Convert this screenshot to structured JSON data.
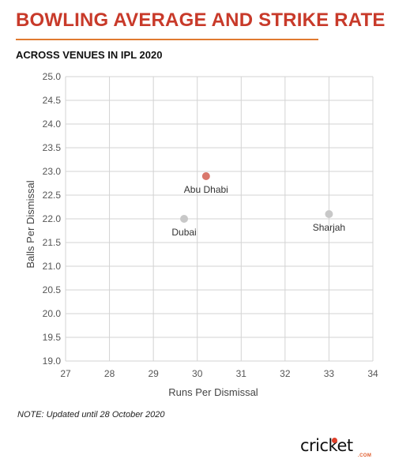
{
  "header": {
    "title": "BOWLING AVERAGE AND STRIKE RATE",
    "subtitle": "ACROSS VENUES IN IPL 2020"
  },
  "note": "NOTE: Updated until 28 October 2020",
  "logo": {
    "text": "cricket",
    "sub": ".COM"
  },
  "colors": {
    "title": "#c83a2a",
    "rule": "#e07a30",
    "highlight_point": "#d9776b",
    "point": "#c8c8c8",
    "grid": "#d3d3d3"
  },
  "chart_data": {
    "type": "scatter",
    "xlabel": "Runs Per Dismissal",
    "ylabel": "Balls Per Dismissal",
    "xlim": [
      27,
      34
    ],
    "ylim": [
      19.0,
      25.0
    ],
    "xticks": [
      "27",
      "28",
      "29",
      "30",
      "31",
      "32",
      "33",
      "34"
    ],
    "yticks": [
      "19.0",
      "19.5",
      "20.0",
      "20.5",
      "21.0",
      "21.5",
      "22.0",
      "22.5",
      "23.0",
      "23.5",
      "24.0",
      "24.5",
      "25.0"
    ],
    "grid": true,
    "points": [
      {
        "label": "Abu Dhabi",
        "x": 30.2,
        "y": 22.9,
        "highlight": true
      },
      {
        "label": "Dubai",
        "x": 29.7,
        "y": 22.0,
        "highlight": false
      },
      {
        "label": "Sharjah",
        "x": 33.0,
        "y": 22.1,
        "highlight": false
      }
    ]
  }
}
